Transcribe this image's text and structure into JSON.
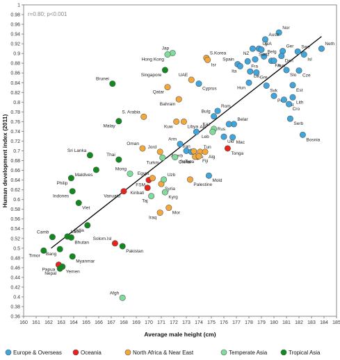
{
  "chart_data": {
    "type": "scatter",
    "xlabel": "Average male height (cm)",
    "ylabel": "Human development index (2011)",
    "annotation": "r=0.80; p<0.001",
    "xlim": [
      160,
      185
    ],
    "ylim": [
      0.36,
      1.0
    ],
    "x_ticks": [
      160,
      161,
      162,
      163,
      164,
      165,
      166,
      167,
      168,
      169,
      170,
      171,
      172,
      173,
      174,
      175,
      176,
      177,
      178,
      179,
      180,
      181,
      182,
      183,
      184,
      185
    ],
    "y_ticks": [
      0.36,
      0.38,
      0.4,
      0.42,
      0.44,
      0.46,
      0.48,
      0.5,
      0.52,
      0.54,
      0.56,
      0.58,
      0.6,
      0.62,
      0.64,
      0.66,
      0.68,
      0.7,
      0.72,
      0.74,
      0.76,
      0.78,
      0.8,
      0.82,
      0.84,
      0.86,
      0.88,
      0.9,
      0.92,
      0.94,
      0.96,
      0.98,
      1
    ],
    "grid": false,
    "legend_position": "bottom",
    "trend_line": {
      "x": [
        162.2,
        183.8
      ],
      "y": [
        0.5,
        0.935
      ]
    },
    "series": [
      {
        "name": "Europe & Overseas",
        "color": "#3ea6dc",
        "points": [
          {
            "x": 180.4,
            "y": 0.943,
            "label": "Nor"
          },
          {
            "x": 179.3,
            "y": 0.929,
            "label": "Austr"
          },
          {
            "x": 178.3,
            "y": 0.91,
            "label": "NZ"
          },
          {
            "x": 178.8,
            "y": 0.91,
            "label": "USA"
          },
          {
            "x": 179.0,
            "y": 0.908,
            "label": "Ir"
          },
          {
            "x": 183.8,
            "y": 0.91,
            "label": "Neth"
          },
          {
            "x": 180.7,
            "y": 0.905,
            "label": "Ger"
          },
          {
            "x": 181.9,
            "y": 0.904,
            "label": "Swe"
          },
          {
            "x": 182.4,
            "y": 0.898,
            "label": "Isl"
          },
          {
            "x": 179.2,
            "y": 0.894,
            "label": "Belg"
          },
          {
            "x": 180.6,
            "y": 0.895,
            "label": "Den"
          },
          {
            "x": 178.5,
            "y": 0.888,
            "label": "Switz"
          },
          {
            "x": 179.8,
            "y": 0.885,
            "label": "Fin"
          },
          {
            "x": 180.0,
            "y": 0.885,
            "label": "Aus"
          },
          {
            "x": 177.1,
            "y": 0.878,
            "label": "Spain"
          },
          {
            "x": 177.9,
            "y": 0.884,
            "label": "Fra"
          },
          {
            "x": 178.1,
            "y": 0.863,
            "label": "UK"
          },
          {
            "x": 178.6,
            "y": 0.861,
            "label": "Gre"
          },
          {
            "x": 177.3,
            "y": 0.874,
            "label": "Ita"
          },
          {
            "x": 182.0,
            "y": 0.865,
            "label": "Cze"
          },
          {
            "x": 181.0,
            "y": 0.866,
            "label": "Slo"
          },
          {
            "x": 178.0,
            "y": 0.84,
            "label": "Hun"
          },
          {
            "x": 179.4,
            "y": 0.834,
            "label": "Svk"
          },
          {
            "x": 181.5,
            "y": 0.835,
            "label": "Est"
          },
          {
            "x": 180.0,
            "y": 0.813,
            "label": "Pol"
          },
          {
            "x": 180.8,
            "y": 0.805,
            "label": "Lot"
          },
          {
            "x": 181.5,
            "y": 0.81,
            "label": "Lith"
          },
          {
            "x": 181.2,
            "y": 0.796,
            "label": "Cro"
          },
          {
            "x": 181.3,
            "y": 0.766,
            "label": "Serb"
          },
          {
            "x": 182.3,
            "y": 0.733,
            "label": "Bosnia"
          },
          {
            "x": 175.5,
            "y": 0.782,
            "label": "Rom"
          },
          {
            "x": 175.2,
            "y": 0.771,
            "label": "Bulg"
          },
          {
            "x": 176.8,
            "y": 0.755,
            "label": "Belar"
          },
          {
            "x": 176.4,
            "y": 0.755,
            "label": "Rus"
          },
          {
            "x": 176.0,
            "y": 0.729,
            "label": "Ukr"
          },
          {
            "x": 176.7,
            "y": 0.728,
            "label": "Mac"
          },
          {
            "x": 174.0,
            "y": 0.838,
            "label": "Cyprus"
          },
          {
            "x": 173.8,
            "y": 0.739,
            "label": "Alb"
          },
          {
            "x": 172.5,
            "y": 0.714,
            "label": "Arm"
          },
          {
            "x": 173.0,
            "y": 0.7,
            "label": "Azerb"
          },
          {
            "x": 173.4,
            "y": 0.698,
            "label": "Geo"
          },
          {
            "x": 174.8,
            "y": 0.649,
            "label": "Mold"
          }
        ]
      },
      {
        "name": "Oceania",
        "color": "#e8231b",
        "points": [
          {
            "x": 176.3,
            "y": 0.705,
            "label": "Tonga"
          },
          {
            "x": 173.9,
            "y": 0.688,
            "label": "Samoa"
          },
          {
            "x": 170.0,
            "y": 0.64,
            "label": "FSM"
          },
          {
            "x": 169.9,
            "y": 0.624,
            "label": "Kiribati"
          },
          {
            "x": 168.0,
            "y": 0.617,
            "label": "Vanuatu"
          },
          {
            "x": 167.3,
            "y": 0.51,
            "label": "Solom.Isl"
          },
          {
            "x": 162.8,
            "y": 0.466,
            "label": "Papua"
          }
        ]
      },
      {
        "name": "North Africa & Near East",
        "color": "#f4a83a",
        "points": [
          {
            "x": 174.6,
            "y": 0.891,
            "label": "S.Korea"
          },
          {
            "x": 174.7,
            "y": 0.887,
            "label": "Isr"
          },
          {
            "x": 173.4,
            "y": 0.846,
            "label": "UAE"
          },
          {
            "x": 171.5,
            "y": 0.831,
            "label": "Qatar"
          },
          {
            "x": 172.4,
            "y": 0.806,
            "label": "Bahrain"
          },
          {
            "x": 169.6,
            "y": 0.77,
            "label": "S. Arabia"
          },
          {
            "x": 172.2,
            "y": 0.76,
            "label": "Kuw"
          },
          {
            "x": 172.8,
            "y": 0.76,
            "label": "Libya"
          },
          {
            "x": 169.5,
            "y": 0.705,
            "label": "Oman"
          },
          {
            "x": 170.9,
            "y": 0.698,
            "label": "Jord"
          },
          {
            "x": 173.6,
            "y": 0.699,
            "label": "Iran"
          },
          {
            "x": 174.1,
            "y": 0.698,
            "label": "Tun"
          },
          {
            "x": 174.5,
            "y": 0.698,
            "label": "Alg"
          },
          {
            "x": 173.7,
            "y": 0.688,
            "label": "Tur"
          },
          {
            "x": 174.0,
            "y": 0.689,
            "label": "Fiji"
          },
          {
            "x": 173.3,
            "y": 0.641,
            "label": "Palestine"
          },
          {
            "x": 170.3,
            "y": 0.644,
            "label": "Egypt"
          },
          {
            "x": 171.0,
            "y": 0.632,
            "label": "Syria"
          },
          {
            "x": 171.6,
            "y": 0.583,
            "label": "Mor"
          },
          {
            "x": 170.9,
            "y": 0.573,
            "label": "Iraq"
          }
        ]
      },
      {
        "name": "Temperate Asia",
        "color": "#7fdc9b",
        "points": [
          {
            "x": 171.9,
            "y": 0.901,
            "label": "Jap"
          },
          {
            "x": 171.5,
            "y": 0.898,
            "label": "Hong Kong"
          },
          {
            "x": 175.2,
            "y": 0.745,
            "label": "Kaz"
          },
          {
            "x": 175.1,
            "y": 0.739,
            "label": "Leb"
          },
          {
            "x": 171.1,
            "y": 0.686,
            "label": "Turkm"
          },
          {
            "x": 172.1,
            "y": 0.687,
            "label": "China"
          },
          {
            "x": 168.5,
            "y": 0.653,
            "label": "Mong"
          },
          {
            "x": 171.2,
            "y": 0.641,
            "label": "Uzb"
          },
          {
            "x": 171.3,
            "y": 0.615,
            "label": "Kyrg"
          },
          {
            "x": 170.2,
            "y": 0.607,
            "label": "Taj"
          },
          {
            "x": 167.9,
            "y": 0.398,
            "label": "Afgh"
          }
        ]
      },
      {
        "name": "Tropical Asia",
        "color": "#0f8a1d",
        "points": [
          {
            "x": 171.3,
            "y": 0.866,
            "label": "Singapore"
          },
          {
            "x": 167.1,
            "y": 0.838,
            "label": "Brunei"
          },
          {
            "x": 167.6,
            "y": 0.761,
            "label": "Malay"
          },
          {
            "x": 165.3,
            "y": 0.691,
            "label": "Sri Lanka"
          },
          {
            "x": 167.6,
            "y": 0.682,
            "label": "Thai"
          },
          {
            "x": 165.8,
            "y": 0.661,
            "label": "Maldives"
          },
          {
            "x": 163.8,
            "y": 0.644,
            "label": "Philip"
          },
          {
            "x": 163.9,
            "y": 0.617,
            "label": "Indones"
          },
          {
            "x": 164.4,
            "y": 0.593,
            "label": "Viet"
          },
          {
            "x": 165.1,
            "y": 0.547,
            "label": "India"
          },
          {
            "x": 162.3,
            "y": 0.523,
            "label": "Camb"
          },
          {
            "x": 163.5,
            "y": 0.524,
            "label": "Laos"
          },
          {
            "x": 163.8,
            "y": 0.522,
            "label": "Bhutan"
          },
          {
            "x": 161.6,
            "y": 0.495,
            "label": "Timor"
          },
          {
            "x": 162.9,
            "y": 0.498,
            "label": "Bang"
          },
          {
            "x": 167.9,
            "y": 0.504,
            "label": "Pakistan"
          },
          {
            "x": 163.9,
            "y": 0.483,
            "label": "Myanmar"
          },
          {
            "x": 163.1,
            "y": 0.462,
            "label": "Yemen"
          },
          {
            "x": 162.9,
            "y": 0.458,
            "label": "Nepal"
          }
        ]
      }
    ]
  }
}
